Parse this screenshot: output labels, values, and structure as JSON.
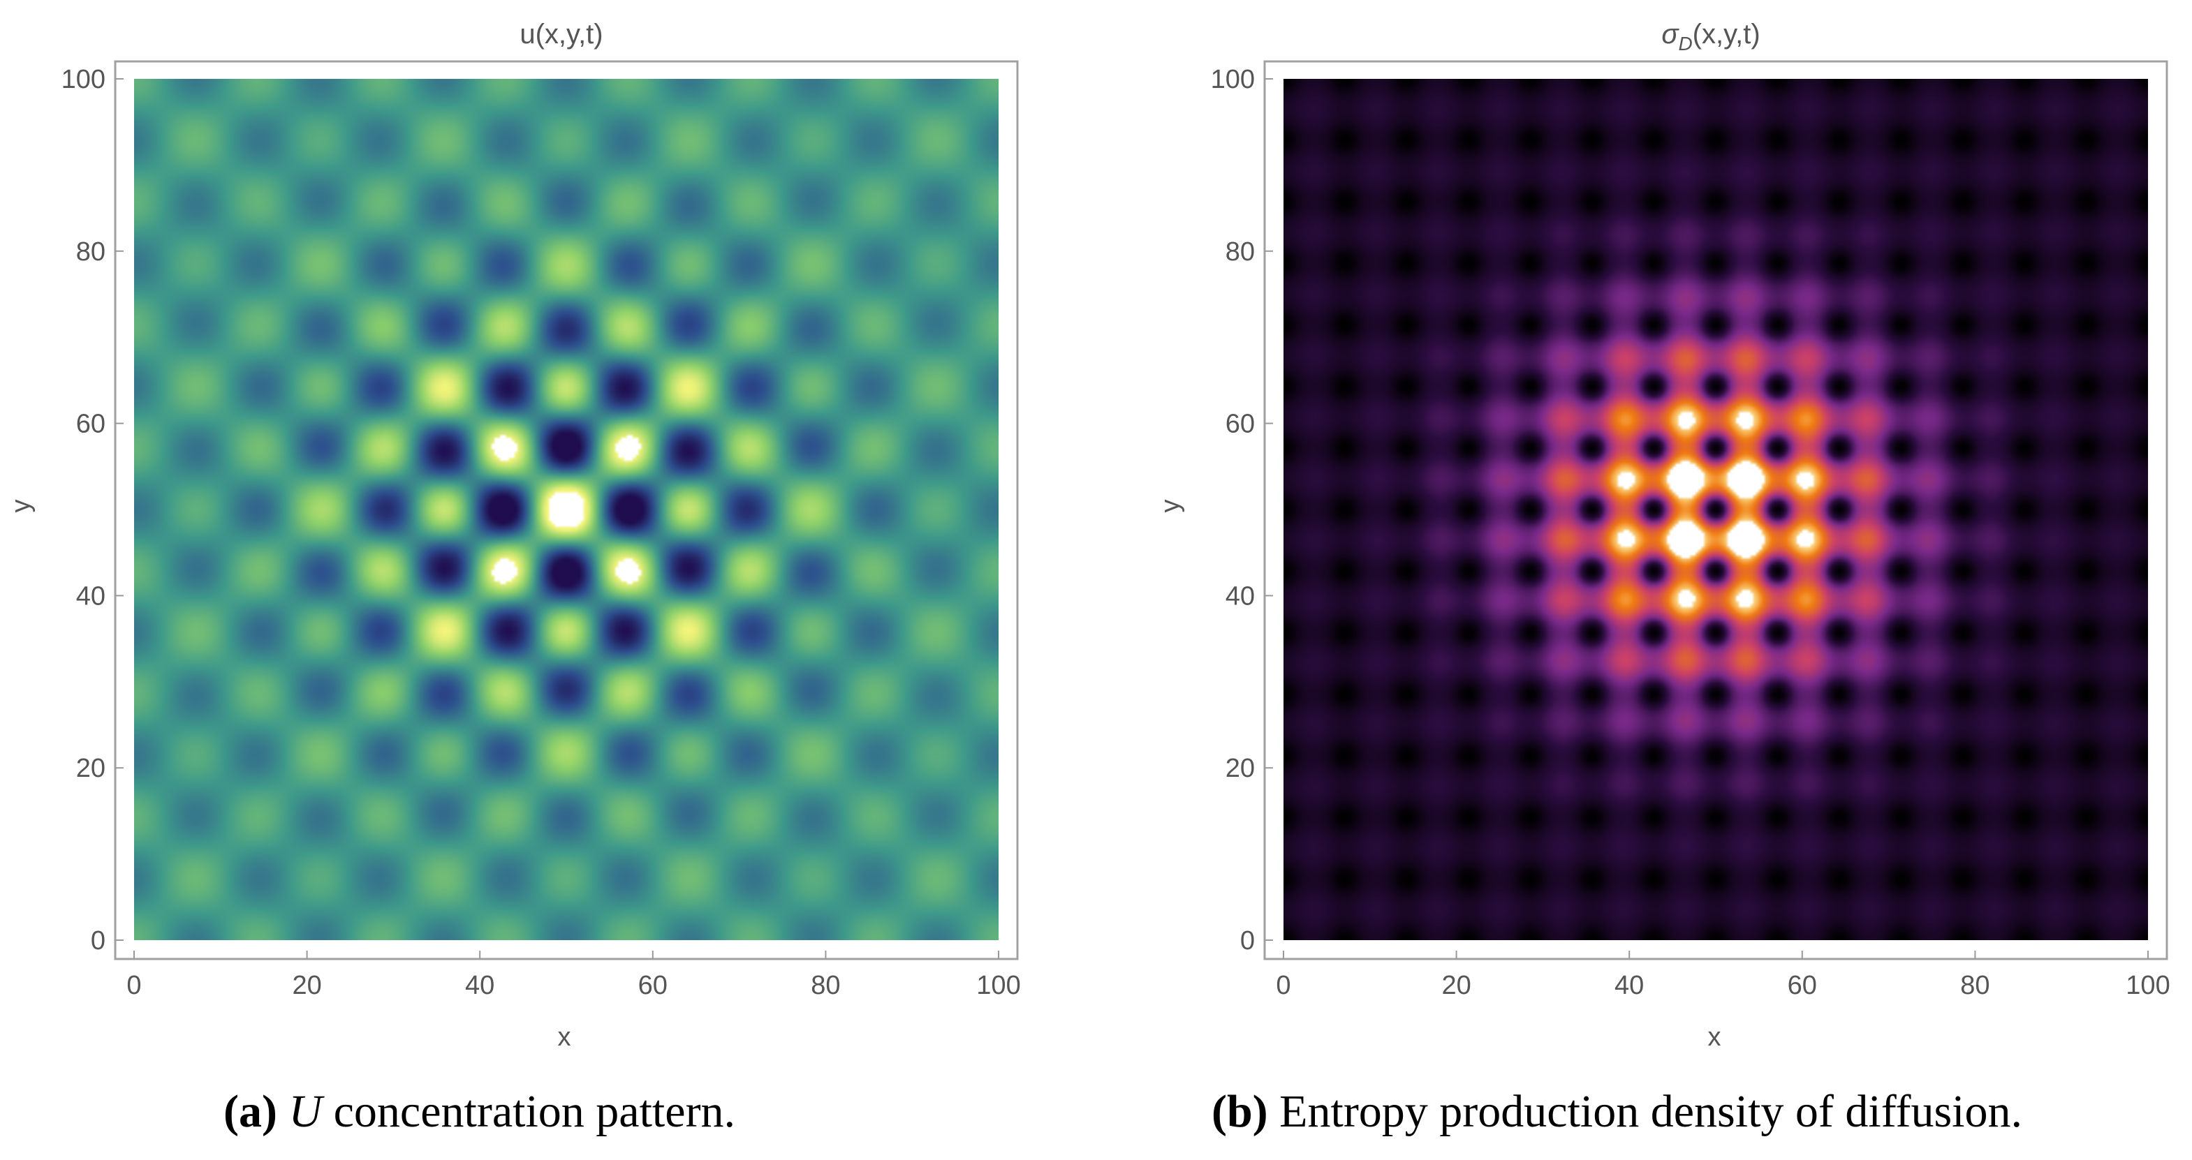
{
  "chart_data": [
    {
      "type": "heatmap",
      "title": "u(x,y,t)",
      "xlabel": "x",
      "ylabel": "y",
      "xlim": [
        0,
        100
      ],
      "ylim": [
        0,
        100
      ],
      "xticks": [
        "0",
        "20",
        "40",
        "60",
        "80",
        "100"
      ],
      "yticks": [
        "0",
        "20",
        "40",
        "60",
        "80",
        "100"
      ],
      "colormap": "viridis",
      "pattern_period": 14.3,
      "center": [
        50,
        50
      ],
      "colors": {
        "low": "#1f0d4f",
        "mid": "#3f9a8a",
        "high": "#f5f57a",
        "saturated": "#ffffff"
      }
    },
    {
      "type": "heatmap",
      "title_main": "σ",
      "title_sub": "D",
      "title_rest": "(x,y,t)",
      "xlabel": "x",
      "ylabel": "y",
      "xlim": [
        0,
        100
      ],
      "ylim": [
        0,
        100
      ],
      "xticks": [
        "0",
        "20",
        "40",
        "60",
        "80",
        "100"
      ],
      "yticks": [
        "0",
        "20",
        "40",
        "60",
        "80",
        "100"
      ],
      "colormap": "inferno",
      "pattern_period": 7.15,
      "center": [
        50,
        50
      ],
      "colors": {
        "low": "#000000",
        "mid": "#7a2a8a",
        "high": "#f07a10",
        "saturated": "#ffffff"
      }
    }
  ],
  "captions": {
    "a_label": "(a)",
    "a_var": "U",
    "a_text": " concentration pattern.",
    "b_label": "(b)",
    "b_text": " Entropy production density of diffusion."
  }
}
